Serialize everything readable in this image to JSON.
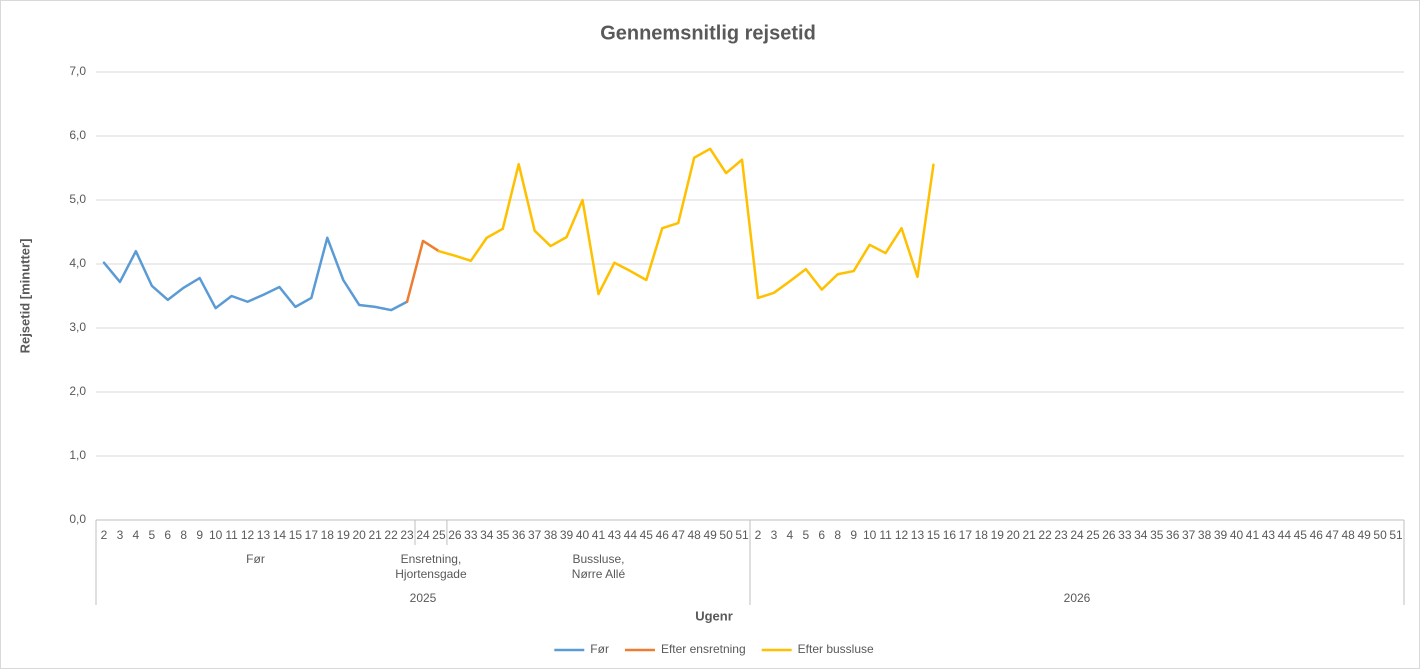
{
  "chart_data": {
    "type": "line",
    "title": "Gennemsnitlig rejsetid",
    "y_label": "Rejsetid [minutter]",
    "x_label": "Ugenr",
    "category_groups": [
      {
        "year": "2025",
        "groups": [
          {
            "name": "Før",
            "categories": [
              "2",
              "3",
              "4",
              "5",
              "6",
              "8",
              "9",
              "10",
              "11",
              "12",
              "13",
              "14",
              "15",
              "17",
              "18",
              "19",
              "20",
              "21",
              "22",
              "23"
            ]
          },
          {
            "name": "Ensretning,\nHjortensgade",
            "categories": [
              "24",
              "25"
            ]
          },
          {
            "name": "Bussluse,\nNørre Allé",
            "categories": [
              "26",
              "33",
              "34",
              "35",
              "36",
              "37",
              "38",
              "39",
              "40",
              "41",
              "43",
              "44",
              "45",
              "46",
              "47",
              "48",
              "49",
              "50",
              "51"
            ]
          }
        ]
      },
      {
        "year": "2026",
        "groups": [
          {
            "categories": [
              "2",
              "3",
              "4",
              "5",
              "6",
              "8",
              "9",
              "10",
              "11",
              "12",
              "13",
              "15",
              "16",
              "17",
              "18",
              "19",
              "20",
              "21",
              "22",
              "23",
              "24",
              "25",
              "26",
              "33",
              "34",
              "35",
              "36",
              "37",
              "38",
              "39",
              "40",
              "41",
              "43",
              "44",
              "45",
              "46",
              "47",
              "48",
              "49",
              "50",
              "51"
            ]
          }
        ]
      }
    ],
    "series": [
      {
        "name": "Før",
        "color": "#5b9bd5",
        "values": [
          4.02,
          3.72,
          4.2,
          3.66,
          3.44,
          3.63,
          3.78,
          3.31,
          3.5,
          3.41,
          3.52,
          3.64,
          3.33,
          3.47,
          4.41,
          3.75,
          3.36,
          3.33,
          3.28,
          3.41,
          null,
          null,
          null,
          null,
          null,
          null,
          null,
          null,
          null,
          null,
          null,
          null,
          null,
          null,
          null,
          null,
          null,
          null,
          null,
          null,
          null,
          null,
          null,
          null,
          null,
          null,
          null,
          null,
          null,
          null,
          null,
          null,
          null,
          null,
          null,
          null,
          null,
          null,
          null,
          null,
          null,
          null,
          null,
          null,
          null,
          null,
          null,
          null,
          null,
          null,
          null,
          null,
          null,
          null,
          null,
          null,
          null,
          null,
          null,
          null,
          null,
          null
        ]
      },
      {
        "name": "Efter ensretning",
        "color": "#ed7d31",
        "values": [
          null,
          null,
          null,
          null,
          null,
          null,
          null,
          null,
          null,
          null,
          null,
          null,
          null,
          null,
          null,
          null,
          null,
          null,
          null,
          3.41,
          4.36,
          4.2,
          null,
          null,
          null,
          null,
          null,
          null,
          null,
          null,
          null,
          null,
          null,
          null,
          null,
          null,
          null,
          null,
          null,
          null,
          null,
          null,
          null,
          null,
          null,
          null,
          null,
          null,
          null,
          null,
          null,
          null,
          null,
          null,
          null,
          null,
          null,
          null,
          null,
          null,
          null,
          null,
          null,
          null,
          null,
          null,
          null,
          null,
          null,
          null,
          null,
          null,
          null,
          null,
          null,
          null,
          null,
          null,
          null,
          null,
          null,
          null
        ]
      },
      {
        "name": "Efter bussluse",
        "color": "#ffc000",
        "values": [
          null,
          null,
          null,
          null,
          null,
          null,
          null,
          null,
          null,
          null,
          null,
          null,
          null,
          null,
          null,
          null,
          null,
          null,
          null,
          null,
          null,
          4.2,
          4.13,
          4.05,
          4.41,
          4.55,
          5.56,
          4.52,
          4.28,
          4.42,
          5.0,
          3.53,
          4.02,
          3.89,
          3.75,
          4.56,
          4.64,
          5.66,
          5.8,
          5.42,
          5.63,
          3.47,
          3.55,
          3.73,
          3.92,
          3.6,
          3.84,
          3.89,
          4.3,
          4.17,
          4.56,
          3.8,
          5.55,
          null,
          null,
          null,
          null,
          null,
          null,
          null,
          null,
          null,
          null,
          null,
          null,
          null,
          null,
          null,
          null,
          null,
          null,
          null,
          null,
          null,
          null,
          null,
          null,
          null,
          null,
          null,
          null,
          null
        ]
      }
    ],
    "ylim": [
      0,
      7
    ],
    "yticks": [
      {
        "value": 0,
        "label": "0,0"
      },
      {
        "value": 1,
        "label": "1,0"
      },
      {
        "value": 2,
        "label": "2,0"
      },
      {
        "value": 3,
        "label": "3,0"
      },
      {
        "value": 4,
        "label": "4,0"
      },
      {
        "value": 5,
        "label": "5,0"
      },
      {
        "value": 6,
        "label": "6,0"
      },
      {
        "value": 7,
        "label": "7,0"
      }
    ],
    "grid": true,
    "legend": "bottom"
  }
}
